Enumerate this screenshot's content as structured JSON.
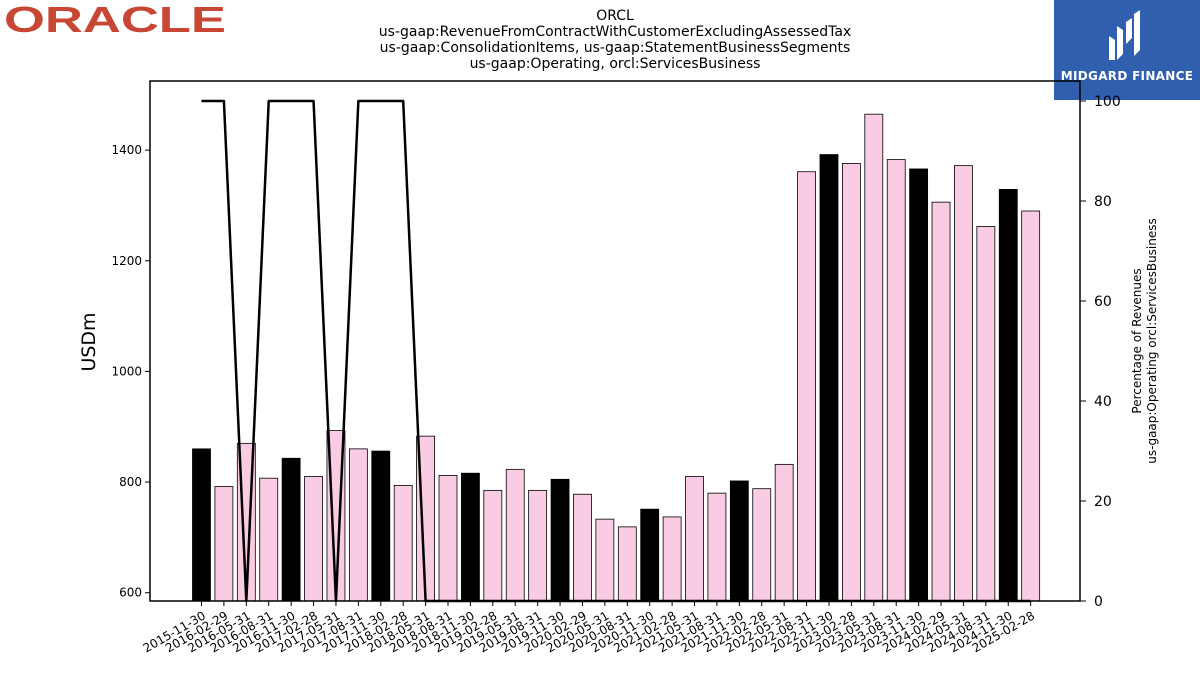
{
  "brand_left": "ORACLE",
  "brand_right": "MIDGARD FINANCE",
  "chart_data": {
    "type": "bar",
    "title_lines": [
      "ORCL",
      "us-gaap:RevenueFromContractWithCustomerExcludingAssessedTax",
      "us-gaap:ConsolidationItems, us-gaap:StatementBusinessSegments",
      "us-gaap:Operating, orcl:ServicesBusiness"
    ],
    "ylabel": "USDm",
    "y2label_lines": [
      "Percentage of Revenues",
      "us-gaap:Operating orcl:ServicesBusiness"
    ],
    "ylim": [
      585,
      1525
    ],
    "y_ticks": [
      600,
      800,
      1000,
      1200,
      1400
    ],
    "y2lim": [
      0,
      104
    ],
    "y2_ticks": [
      0,
      20,
      40,
      60,
      80,
      100
    ],
    "categories": [
      "2015-11-30",
      "2016-02-29",
      "2016-05-31",
      "2016-08-31",
      "2016-11-30",
      "2017-02-28",
      "2017-05-31",
      "2017-08-31",
      "2017-11-30",
      "2018-02-28",
      "2018-05-31",
      "2018-08-31",
      "2018-11-30",
      "2019-02-28",
      "2019-05-31",
      "2019-08-31",
      "2019-11-30",
      "2020-02-29",
      "2020-05-31",
      "2020-08-31",
      "2020-11-30",
      "2021-02-28",
      "2021-05-31",
      "2021-08-31",
      "2021-11-30",
      "2022-02-28",
      "2022-05-31",
      "2022-08-31",
      "2022-11-30",
      "2023-02-28",
      "2023-05-31",
      "2023-08-31",
      "2023-11-30",
      "2024-02-29",
      "2024-05-31",
      "2024-08-31",
      "2024-11-30",
      "2025-02-28"
    ],
    "values": [
      860,
      792,
      870,
      807,
      843,
      810,
      893,
      860,
      856,
      794,
      883,
      812,
      816,
      785,
      823,
      785,
      805,
      778,
      733,
      719,
      751,
      737,
      810,
      780,
      802,
      788,
      832,
      1361,
      1392,
      1376,
      1465,
      1383,
      1366,
      1306,
      1372,
      1262,
      1329,
      1290
    ],
    "highlight": [
      true,
      false,
      false,
      false,
      true,
      false,
      false,
      false,
      true,
      false,
      false,
      false,
      true,
      false,
      false,
      false,
      true,
      false,
      false,
      false,
      true,
      false,
      false,
      false,
      true,
      false,
      false,
      false,
      true,
      false,
      false,
      false,
      true,
      false,
      false,
      false,
      true,
      false
    ],
    "highlight_color": "#000000",
    "bar_color": "#f9cce3",
    "edge_color": "#000000",
    "line_series": {
      "name": "Percentage of Revenues",
      "color": "#000000",
      "values": [
        100,
        100,
        0,
        100,
        100,
        100,
        0,
        100,
        100,
        100,
        0,
        0,
        0,
        0,
        0,
        0,
        0,
        0,
        0,
        0,
        0,
        0,
        0,
        0,
        0,
        0,
        0,
        0,
        0,
        0,
        0,
        0,
        0,
        0,
        0,
        0,
        0,
        0
      ]
    },
    "grid": false
  }
}
